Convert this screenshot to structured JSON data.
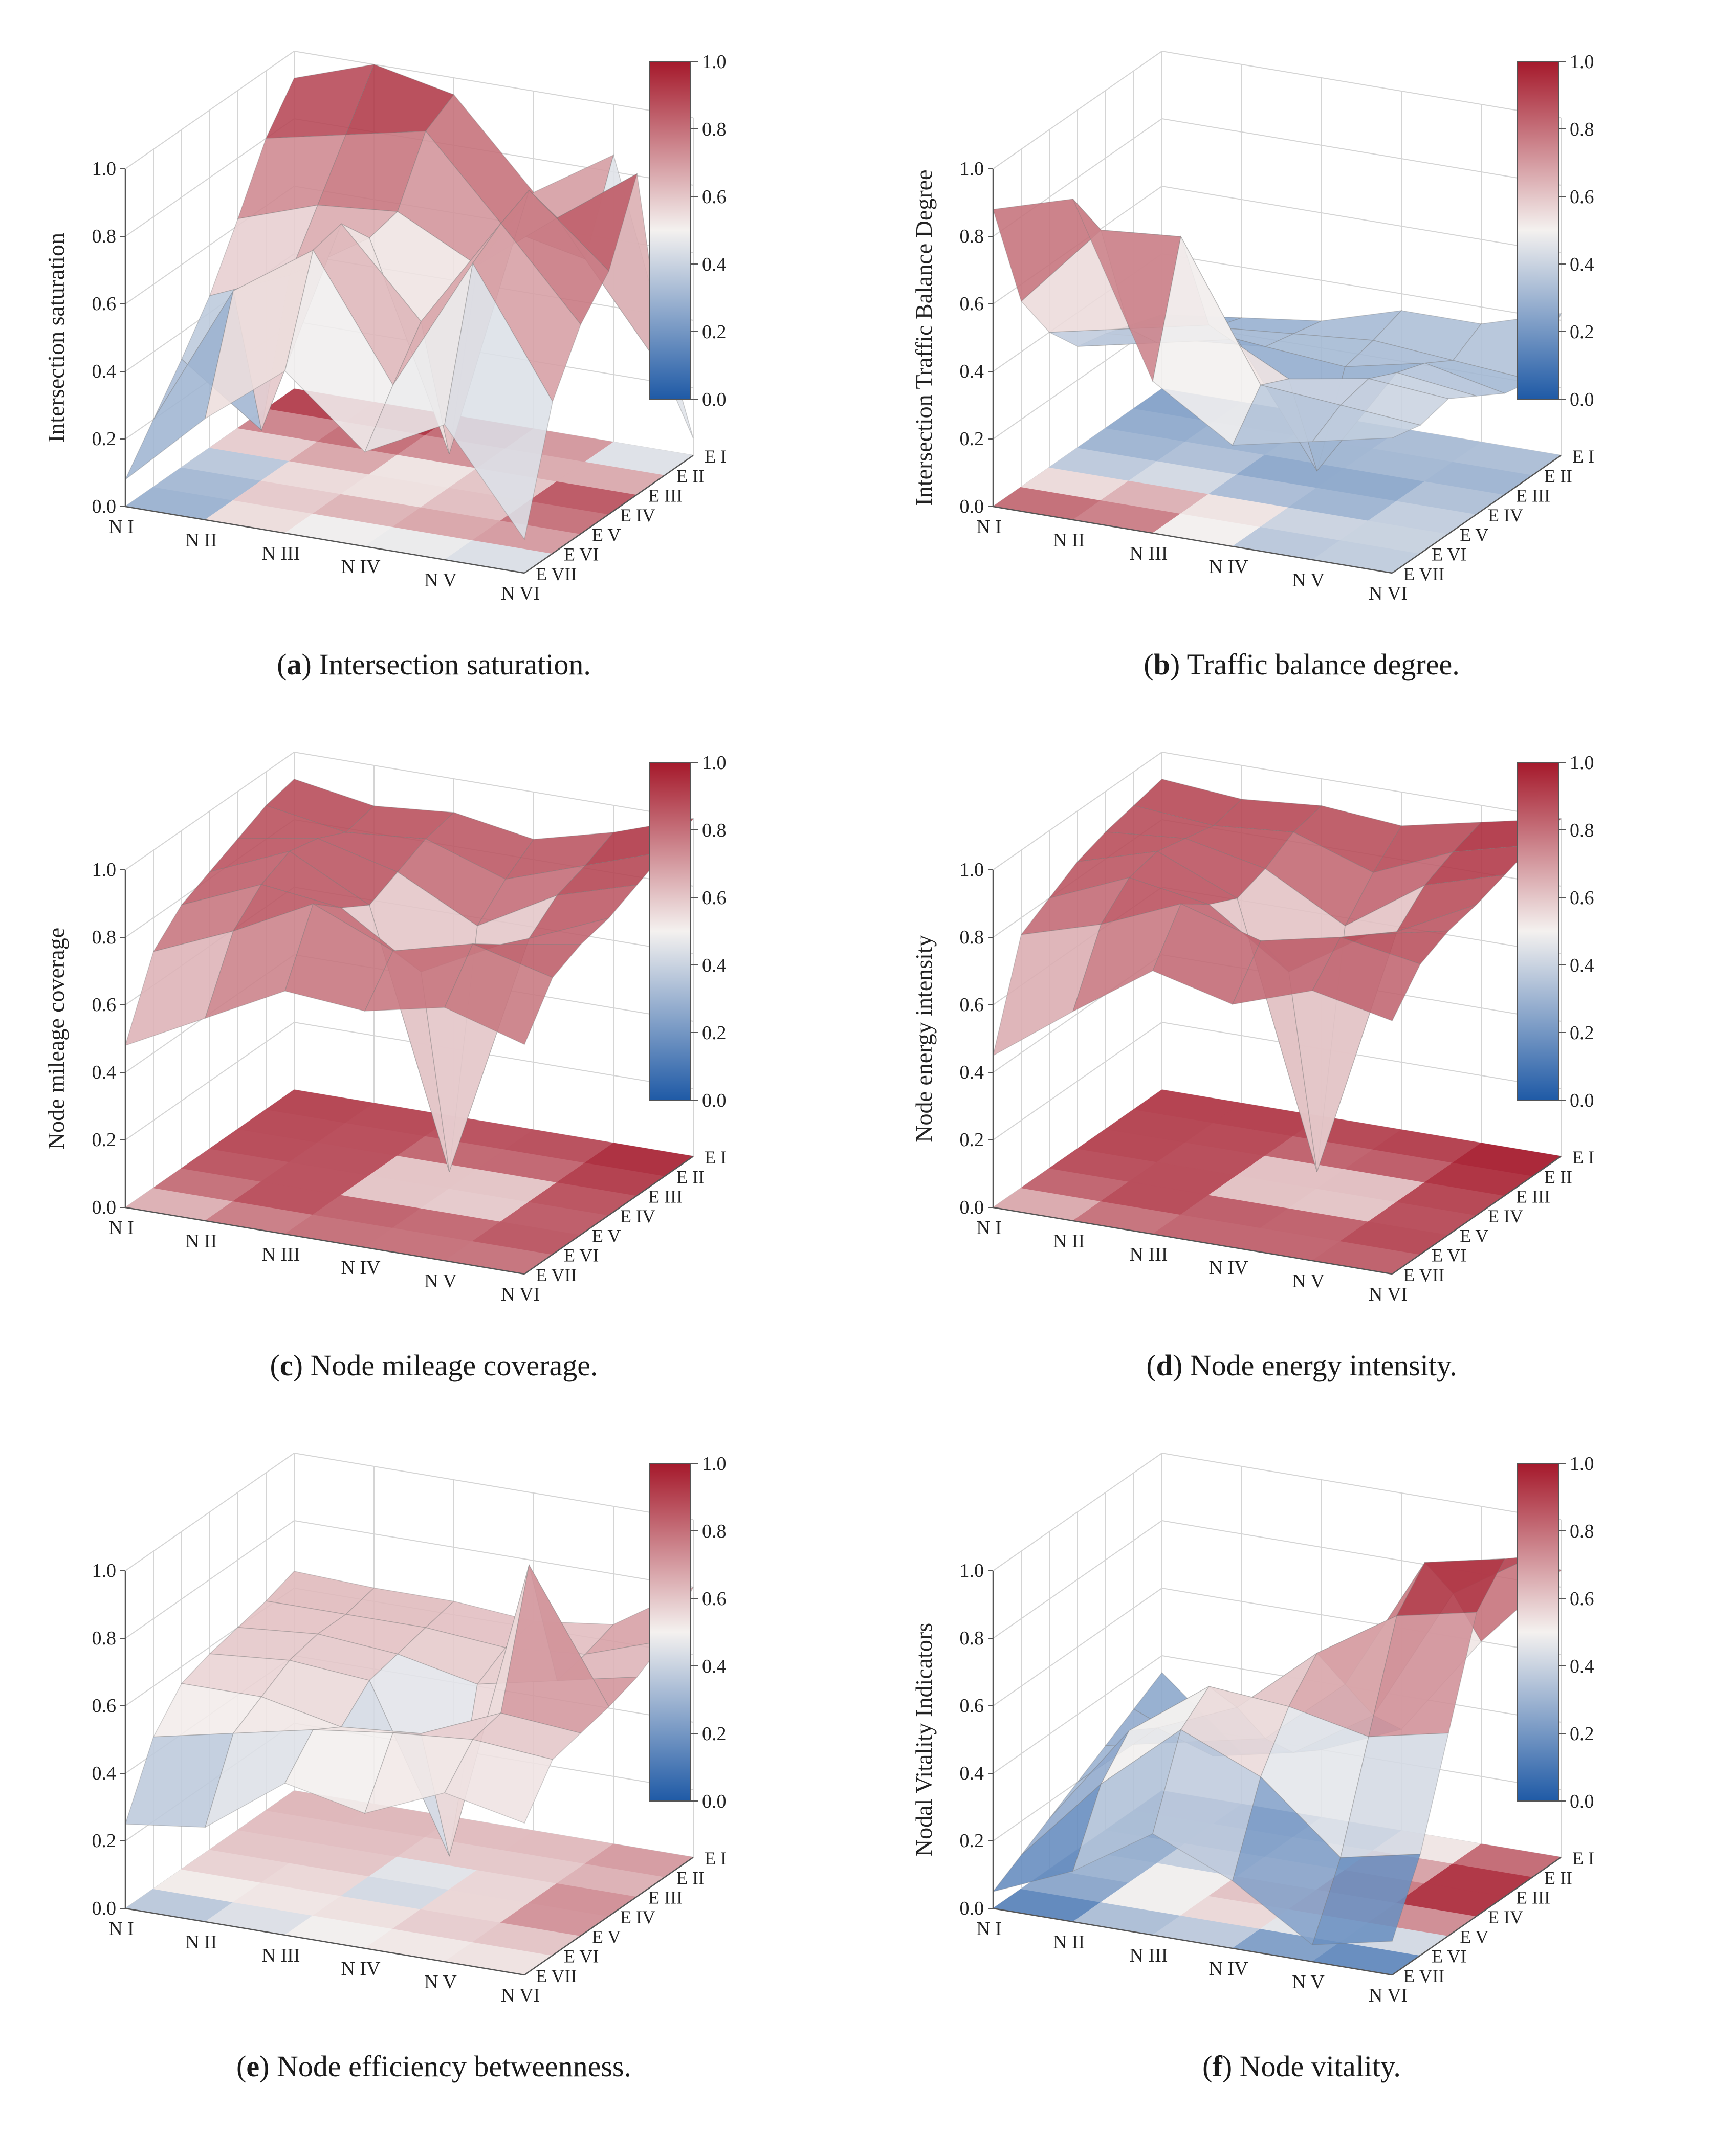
{
  "colors": {
    "low": "#1f5aa6",
    "mid": "#f4f1ef",
    "high": "#a5192b",
    "grid": "#d4d4d4",
    "axis": "#555555"
  },
  "colorbar_ticks": [
    "1.0",
    "0.8",
    "0.6",
    "0.4",
    "0.2",
    "0.0"
  ],
  "chart_data": [
    {
      "type": "surface3d",
      "id": "a",
      "caption_letter": "a",
      "caption_text": " Intersection saturation.",
      "zlabel": "Intersection saturation",
      "zticks": [
        "0.0",
        "0.2",
        "0.4",
        "0.6",
        "0.8",
        "1.0"
      ],
      "x_labels": [
        "N I",
        "N II",
        "N III",
        "N IV",
        "N V",
        "N VI"
      ],
      "y_labels": [
        "E I",
        "E II",
        "E III",
        "E IV",
        "E V",
        "E VI",
        "E VII"
      ],
      "zlim": [
        0,
        1
      ],
      "values": [
        [
          0.08,
          0.2,
          0.32,
          0.45,
          0.62,
          0.8,
          0.92
        ],
        [
          0.3,
          0.62,
          0.15,
          0.55,
          0.7,
          0.85,
          1.0
        ],
        [
          0.48,
          0.78,
          0.8,
          0.7,
          0.72,
          0.9,
          0.95
        ],
        [
          0.28,
          0.42,
          0.55,
          0.1,
          0.6,
          0.65,
          0.7
        ],
        [
          0.4,
          0.82,
          0.88,
          0.92,
          0.78,
          0.6,
          0.85
        ],
        [
          0.1,
          0.45,
          0.62,
          0.72,
          0.95,
          0.3,
          0.05
        ]
      ]
    },
    {
      "type": "surface3d",
      "id": "b",
      "caption_letter": "b",
      "caption_text": " Traffic balance degree.",
      "zlabel": "Intersection Traffic Balance Degree",
      "zticks": [
        "0.0",
        "0.2",
        "0.4",
        "0.6",
        "0.8",
        "1.0"
      ],
      "x_labels": [
        "N I",
        "N II",
        "N III",
        "N IV",
        "N V",
        "N VI"
      ],
      "y_labels": [
        "E I",
        "E II",
        "E III",
        "E IV",
        "E V",
        "E VI",
        "E VII"
      ],
      "zlim": [
        0,
        1
      ],
      "values": [
        [
          0.88,
          0.55,
          0.4,
          0.3,
          0.28,
          0.25,
          0.22
        ],
        [
          0.95,
          0.8,
          0.45,
          0.35,
          0.3,
          0.28,
          0.25
        ],
        [
          0.45,
          0.82,
          0.5,
          0.4,
          0.32,
          0.3,
          0.28
        ],
        [
          0.3,
          0.42,
          0.38,
          0.05,
          0.3,
          0.32,
          0.35
        ],
        [
          0.35,
          0.4,
          0.42,
          0.38,
          0.35,
          0.3,
          0.35
        ],
        [
          0.4,
          0.38,
          0.4,
          0.35,
          0.3,
          0.28,
          0.42
        ]
      ]
    },
    {
      "type": "surface3d",
      "id": "c",
      "caption_letter": "c",
      "caption_text": " Node mileage coverage.",
      "zlabel": "Node mileage coverage",
      "zticks": [
        "0.0",
        "0.2",
        "0.4",
        "0.6",
        "0.8",
        "1.0"
      ],
      "x_labels": [
        "N I",
        "N II",
        "N III",
        "N IV",
        "N V",
        "N VI"
      ],
      "y_labels": [
        "E I",
        "E II",
        "E III",
        "E IV",
        "E V",
        "E VI",
        "E VII"
      ],
      "zlim": [
        0,
        1
      ],
      "values": [
        [
          0.48,
          0.7,
          0.78,
          0.82,
          0.86,
          0.9,
          0.92
        ],
        [
          0.6,
          0.8,
          0.88,
          0.92,
          0.9,
          0.86,
          0.88
        ],
        [
          0.72,
          0.92,
          0.85,
          0.8,
          0.84,
          0.88,
          0.9
        ],
        [
          0.7,
          0.82,
          0.7,
          0.05,
          0.72,
          0.8,
          0.86
        ],
        [
          0.75,
          0.88,
          0.82,
          0.78,
          0.85,
          0.88,
          0.92
        ],
        [
          0.68,
          0.82,
          0.86,
          0.88,
          0.92,
          0.96,
          1.0
        ]
      ]
    },
    {
      "type": "surface3d",
      "id": "d",
      "caption_letter": "d",
      "caption_text": " Node energy intensity.",
      "zlabel": "Node energy intensity",
      "zticks": [
        "0.0",
        "0.2",
        "0.4",
        "0.6",
        "0.8",
        "1.0"
      ],
      "x_labels": [
        "N I",
        "N II",
        "N III",
        "N IV",
        "N V",
        "N VI"
      ],
      "y_labels": [
        "E I",
        "E II",
        "E III",
        "E IV",
        "E V",
        "E VI",
        "E VII"
      ],
      "zlim": [
        0,
        1
      ],
      "values": [
        [
          0.45,
          0.75,
          0.8,
          0.85,
          0.88,
          0.9,
          0.92
        ],
        [
          0.62,
          0.82,
          0.9,
          0.92,
          0.9,
          0.88,
          0.9
        ],
        [
          0.78,
          0.92,
          0.86,
          0.82,
          0.85,
          0.9,
          0.92
        ],
        [
          0.72,
          0.85,
          0.7,
          0.05,
          0.72,
          0.82,
          0.9
        ],
        [
          0.8,
          0.9,
          0.85,
          0.8,
          0.88,
          0.92,
          0.95
        ],
        [
          0.75,
          0.86,
          0.9,
          0.92,
          0.95,
          0.98,
          1.0
        ]
      ]
    },
    {
      "type": "surface3d",
      "id": "e",
      "caption_letter": "e",
      "caption_text": " Node efficiency betweenness.",
      "zlabel": "",
      "zticks": [
        "0.0",
        "0.2",
        "0.4",
        "0.6",
        "0.8",
        "1.0"
      ],
      "x_labels": [
        "N I",
        "N II",
        "N III",
        "N IV",
        "N V",
        "N VI"
      ],
      "y_labels": [
        "E I",
        "E II",
        "E III",
        "E IV",
        "E V",
        "E VI",
        "E VII"
      ],
      "zlim": [
        0,
        1
      ],
      "values": [
        [
          0.25,
          0.45,
          0.55,
          0.58,
          0.6,
          0.62,
          0.65
        ],
        [
          0.28,
          0.5,
          0.55,
          0.6,
          0.62,
          0.62,
          0.64
        ],
        [
          0.45,
          0.55,
          0.5,
          0.58,
          0.6,
          0.62,
          0.64
        ],
        [
          0.4,
          0.58,
          0.52,
          0.1,
          0.55,
          0.6,
          0.62
        ],
        [
          0.5,
          0.6,
          0.62,
          1.0,
          0.6,
          0.62,
          0.65
        ],
        [
          0.45,
          0.58,
          0.6,
          0.62,
          0.65,
          0.7,
          0.8
        ]
      ]
    },
    {
      "type": "surface3d",
      "id": "f",
      "caption_letter": "f",
      "caption_text": " Node vitality.",
      "zlabel": "Nodal Vitality Indicators",
      "zticks": [
        "0.0",
        "0.2",
        "0.4",
        "0.6",
        "0.8",
        "1.0"
      ],
      "x_labels": [
        "N I",
        "N II",
        "N III",
        "N IV",
        "N V",
        "N VI"
      ],
      "y_labels": [
        "E I",
        "E II",
        "E III",
        "E IV",
        "E V",
        "E VI",
        "E VII"
      ],
      "zlim": [
        0,
        1
      ],
      "values": [
        [
          0.05,
          0.1,
          0.15,
          0.2,
          0.25,
          0.3,
          0.35
        ],
        [
          0.15,
          0.35,
          0.45,
          0.4,
          0.3,
          0.2,
          0.15
        ],
        [
          0.3,
          0.55,
          0.62,
          0.5,
          0.35,
          0.25,
          0.2
        ],
        [
          0.2,
          0.45,
          0.6,
          0.7,
          0.55,
          0.4,
          0.3
        ],
        [
          0.05,
          0.25,
          0.55,
          0.85,
          0.95,
          0.8,
          0.6
        ],
        [
          0.1,
          0.3,
          0.6,
          0.9,
          1.0,
          0.95,
          0.85
        ]
      ]
    }
  ]
}
